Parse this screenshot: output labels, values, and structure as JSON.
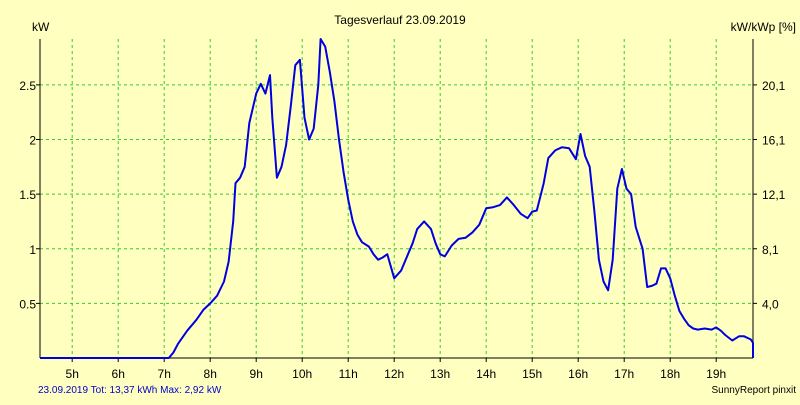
{
  "chart_data": {
    "type": "line",
    "title": "Tagesverlauf 23.09.2019",
    "ylabel_left": "kW",
    "ylabel_right": "kW/kWp [%]",
    "x_ticks": [
      "5h",
      "6h",
      "7h",
      "8h",
      "9h",
      "10h",
      "11h",
      "12h",
      "13h",
      "14h",
      "15h",
      "16h",
      "17h",
      "18h",
      "19h"
    ],
    "x_tick_hours": [
      5,
      6,
      7,
      8,
      9,
      10,
      11,
      12,
      13,
      14,
      15,
      16,
      17,
      18,
      19
    ],
    "xlim": [
      4.3,
      19.8
    ],
    "ylim": [
      0,
      2.92
    ],
    "y_ticks_left": [
      0.5,
      1,
      1.5,
      2,
      2.5
    ],
    "y_tick_labels_left": [
      "0.5",
      "1",
      "1.5",
      "2",
      "2.5"
    ],
    "y_ticks_right": [
      0.5,
      1,
      1.5,
      2,
      2.5
    ],
    "y_tick_labels_right": [
      "4,0",
      "8,1",
      "12,1",
      "16,1",
      "20,1"
    ],
    "grid": true,
    "colors": {
      "background": "#ffffc0",
      "line": "#0000e0",
      "grid": "#33cc33",
      "text": "#000000",
      "footer": "#0000cc"
    },
    "series": [
      {
        "points": [
          [
            4.3,
            0
          ],
          [
            7.1,
            0
          ],
          [
            7.2,
            0.05
          ],
          [
            7.3,
            0.13
          ],
          [
            7.5,
            0.25
          ],
          [
            7.7,
            0.35
          ],
          [
            7.85,
            0.44
          ],
          [
            8.0,
            0.5
          ],
          [
            8.15,
            0.57
          ],
          [
            8.3,
            0.7
          ],
          [
            8.4,
            0.88
          ],
          [
            8.5,
            1.25
          ],
          [
            8.55,
            1.6
          ],
          [
            8.65,
            1.65
          ],
          [
            8.75,
            1.75
          ],
          [
            8.85,
            2.15
          ],
          [
            9.0,
            2.42
          ],
          [
            9.1,
            2.51
          ],
          [
            9.2,
            2.42
          ],
          [
            9.3,
            2.59
          ],
          [
            9.35,
            2.2
          ],
          [
            9.45,
            1.65
          ],
          [
            9.55,
            1.75
          ],
          [
            9.65,
            1.95
          ],
          [
            9.75,
            2.3
          ],
          [
            9.85,
            2.68
          ],
          [
            9.95,
            2.73
          ],
          [
            10.05,
            2.2
          ],
          [
            10.15,
            2.0
          ],
          [
            10.25,
            2.1
          ],
          [
            10.35,
            2.5
          ],
          [
            10.4,
            2.92
          ],
          [
            10.5,
            2.85
          ],
          [
            10.6,
            2.62
          ],
          [
            10.7,
            2.35
          ],
          [
            10.8,
            2.0
          ],
          [
            10.9,
            1.7
          ],
          [
            11.0,
            1.45
          ],
          [
            11.1,
            1.25
          ],
          [
            11.2,
            1.13
          ],
          [
            11.3,
            1.06
          ],
          [
            11.45,
            1.02
          ],
          [
            11.55,
            0.95
          ],
          [
            11.65,
            0.9
          ],
          [
            11.75,
            0.92
          ],
          [
            11.85,
            0.95
          ],
          [
            12.0,
            0.73
          ],
          [
            12.15,
            0.8
          ],
          [
            12.3,
            0.95
          ],
          [
            12.4,
            1.05
          ],
          [
            12.5,
            1.18
          ],
          [
            12.65,
            1.25
          ],
          [
            12.8,
            1.18
          ],
          [
            12.9,
            1.05
          ],
          [
            13.0,
            0.95
          ],
          [
            13.1,
            0.93
          ],
          [
            13.25,
            1.03
          ],
          [
            13.4,
            1.09
          ],
          [
            13.55,
            1.1
          ],
          [
            13.7,
            1.15
          ],
          [
            13.85,
            1.22
          ],
          [
            14.0,
            1.37
          ],
          [
            14.15,
            1.38
          ],
          [
            14.3,
            1.4
          ],
          [
            14.45,
            1.47
          ],
          [
            14.6,
            1.4
          ],
          [
            14.75,
            1.32
          ],
          [
            14.9,
            1.28
          ],
          [
            15.0,
            1.34
          ],
          [
            15.1,
            1.35
          ],
          [
            15.25,
            1.6
          ],
          [
            15.35,
            1.83
          ],
          [
            15.5,
            1.9
          ],
          [
            15.65,
            1.93
          ],
          [
            15.8,
            1.92
          ],
          [
            15.95,
            1.82
          ],
          [
            16.05,
            2.05
          ],
          [
            16.15,
            1.85
          ],
          [
            16.25,
            1.75
          ],
          [
            16.35,
            1.35
          ],
          [
            16.45,
            0.9
          ],
          [
            16.55,
            0.7
          ],
          [
            16.65,
            0.62
          ],
          [
            16.75,
            0.9
          ],
          [
            16.85,
            1.55
          ],
          [
            16.95,
            1.73
          ],
          [
            17.05,
            1.55
          ],
          [
            17.15,
            1.5
          ],
          [
            17.25,
            1.2
          ],
          [
            17.4,
            1.0
          ],
          [
            17.5,
            0.65
          ],
          [
            17.6,
            0.66
          ],
          [
            17.7,
            0.68
          ],
          [
            17.8,
            0.82
          ],
          [
            17.9,
            0.82
          ],
          [
            18.0,
            0.73
          ],
          [
            18.1,
            0.57
          ],
          [
            18.2,
            0.43
          ],
          [
            18.3,
            0.36
          ],
          [
            18.4,
            0.3
          ],
          [
            18.5,
            0.27
          ],
          [
            18.6,
            0.26
          ],
          [
            18.75,
            0.27
          ],
          [
            18.9,
            0.26
          ],
          [
            19.0,
            0.28
          ],
          [
            19.1,
            0.25
          ],
          [
            19.2,
            0.21
          ],
          [
            19.35,
            0.16
          ],
          [
            19.5,
            0.2
          ],
          [
            19.6,
            0.2
          ],
          [
            19.75,
            0.17
          ],
          [
            19.9,
            0.14
          ],
          [
            20.05,
            0.1
          ],
          [
            20.2,
            0.04
          ],
          [
            20.35,
            0
          ],
          [
            20.5,
            0
          ]
        ]
      }
    ],
    "footer_left": "23.09.2019 Tot: 13,37 kWh Max: 2,92 kW",
    "footer_right": "SunnyReport pinxit"
  }
}
